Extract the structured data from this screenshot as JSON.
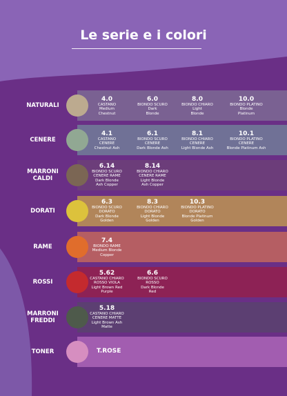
{
  "title": "Le serie e i colori",
  "colors": {
    "background": "#6a2f86",
    "header": "#8a64b6",
    "bands": {
      "naturali": "#7a6192",
      "cenere": "#707196",
      "marroni_caldi": "#6c3d7a",
      "dorati": "#b1855a",
      "rame": "#b55e63",
      "rossi": "#8d2255",
      "marroni_freddi": "#5c3f72",
      "toner": "#a25db0"
    },
    "swatches": {
      "naturali": "#bcaa8f",
      "cenere": "#91a893",
      "marroni_caldi": "#7b6654",
      "dorati": "#dcc23c",
      "rame": "#e06d2c",
      "rossi": "#c42a2e",
      "marroni_freddi": "#4e5a4b",
      "toner": "#d68ec0"
    }
  },
  "rows": [
    {
      "label": [
        "NATURALI"
      ],
      "items": [
        {
          "code": "4.0",
          "lines": [
            "CASTANO",
            "Medium",
            "Chestnut"
          ]
        },
        {
          "code": "6.0",
          "lines": [
            "BIONDO SCURO",
            "Dark",
            "Blonde"
          ]
        },
        {
          "code": "8.0",
          "lines": [
            "BIONDO CHIARO",
            "Light",
            "Blonde"
          ]
        },
        {
          "code": "10.0",
          "lines": [
            "BIONDO PLATINO",
            "Blonde",
            "Platinum"
          ]
        }
      ]
    },
    {
      "label": [
        "CENERE"
      ],
      "items": [
        {
          "code": "4.1",
          "lines": [
            "CASTANO",
            "CENERE",
            "Chestnut Ash"
          ]
        },
        {
          "code": "6.1",
          "lines": [
            "BIONDO SCURO",
            "CENERE",
            "Dark Blonde Ash"
          ]
        },
        {
          "code": "8.1",
          "lines": [
            "BIONDO CHIARO",
            "CENERE",
            "Light Blonde Ash"
          ]
        },
        {
          "code": "10.1",
          "lines": [
            "BIONDO PLATINO",
            "CENERE",
            "Blonde Platinum Ash"
          ]
        }
      ]
    },
    {
      "label": [
        "MARRONI",
        "CALDI"
      ],
      "items": [
        {
          "code": "6.14",
          "lines": [
            "BIONDO SCURO",
            "CENERE RAME",
            "Dark Blonde",
            "Ash Copper"
          ]
        },
        {
          "code": "8.14",
          "lines": [
            "BIONDO CHIARO",
            "CENERE RAME",
            "Light Blonde",
            "Ash Copper"
          ]
        }
      ]
    },
    {
      "label": [
        "DORATI"
      ],
      "items": [
        {
          "code": "6.3",
          "lines": [
            "BIONDO SCURO",
            "DORATO",
            "Dark Blonde",
            "Golden"
          ]
        },
        {
          "code": "8.3",
          "lines": [
            "BIONDO CHIARO",
            "DORATO",
            "Light Blonde",
            "Golden"
          ]
        },
        {
          "code": "10.3",
          "lines": [
            "BIONDO PLATINO",
            "DORATO",
            "Blonde Platinum",
            "Golden"
          ]
        }
      ]
    },
    {
      "label": [
        "RAME"
      ],
      "items": [
        {
          "code": "7.4",
          "lines": [
            "BIONDO RAME",
            "Medium Blonde",
            "Copper"
          ]
        }
      ]
    },
    {
      "label": [
        "ROSSI"
      ],
      "items": [
        {
          "code": "5.62",
          "lines": [
            "CASTANO CHIARO",
            "ROSSO VIOLA",
            "Light Brown Red",
            "Purple"
          ]
        },
        {
          "code": "6.6",
          "lines": [
            "BIONDO SCURO",
            "ROSSO",
            "Dark Blonde",
            "Red"
          ]
        }
      ]
    },
    {
      "label": [
        "MARRONI",
        "FREDDI"
      ],
      "items": [
        {
          "code": "5.18",
          "lines": [
            "CASTANO CHIARO",
            "CENERE MATTE",
            "Light Brown Ash",
            "Matte"
          ]
        }
      ]
    },
    {
      "label": [
        "TONER"
      ],
      "toner": "T.ROSE",
      "items": []
    }
  ]
}
